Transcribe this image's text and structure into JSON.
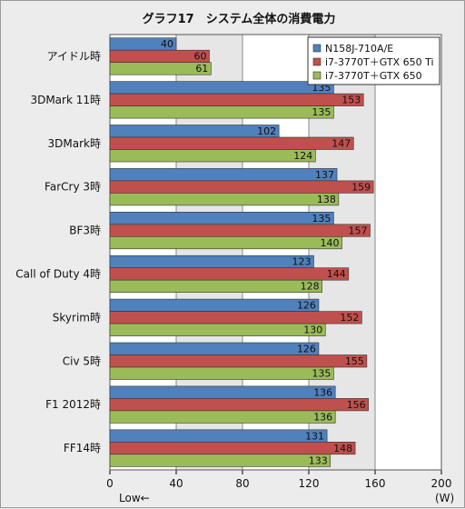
{
  "chart_data": {
    "type": "bar",
    "orientation": "horizontal",
    "title": "グラフ17　システム全体の消費電力",
    "xlabel": "",
    "unit_label": "(W)",
    "direction_note": "Low←",
    "xlim": [
      0,
      200
    ],
    "xticks": [
      0,
      40,
      80,
      120,
      160,
      200
    ],
    "categories": [
      "アイドル時",
      "3DMark 11時",
      "3DMark時",
      "FarCry 3時",
      "BF3時",
      "Call of Duty 4時",
      "Skyrim時",
      "Civ 5時",
      "F1 2012時",
      "FF14時"
    ],
    "series": [
      {
        "name": "N158J-710A/E",
        "color": "#4f81bd",
        "values": [
          40,
          135,
          102,
          137,
          135,
          123,
          126,
          126,
          136,
          131
        ]
      },
      {
        "name": "i7-3770T＋GTX 650 Ti",
        "color": "#c0504d",
        "values": [
          60,
          153,
          147,
          159,
          157,
          144,
          152,
          155,
          156,
          148
        ]
      },
      {
        "name": "i7-3770T＋GTX 650",
        "color": "#9bbb59",
        "values": [
          61,
          135,
          124,
          138,
          140,
          128,
          130,
          135,
          136,
          133
        ]
      }
    ],
    "grid": true,
    "legend_position": "top-right"
  }
}
